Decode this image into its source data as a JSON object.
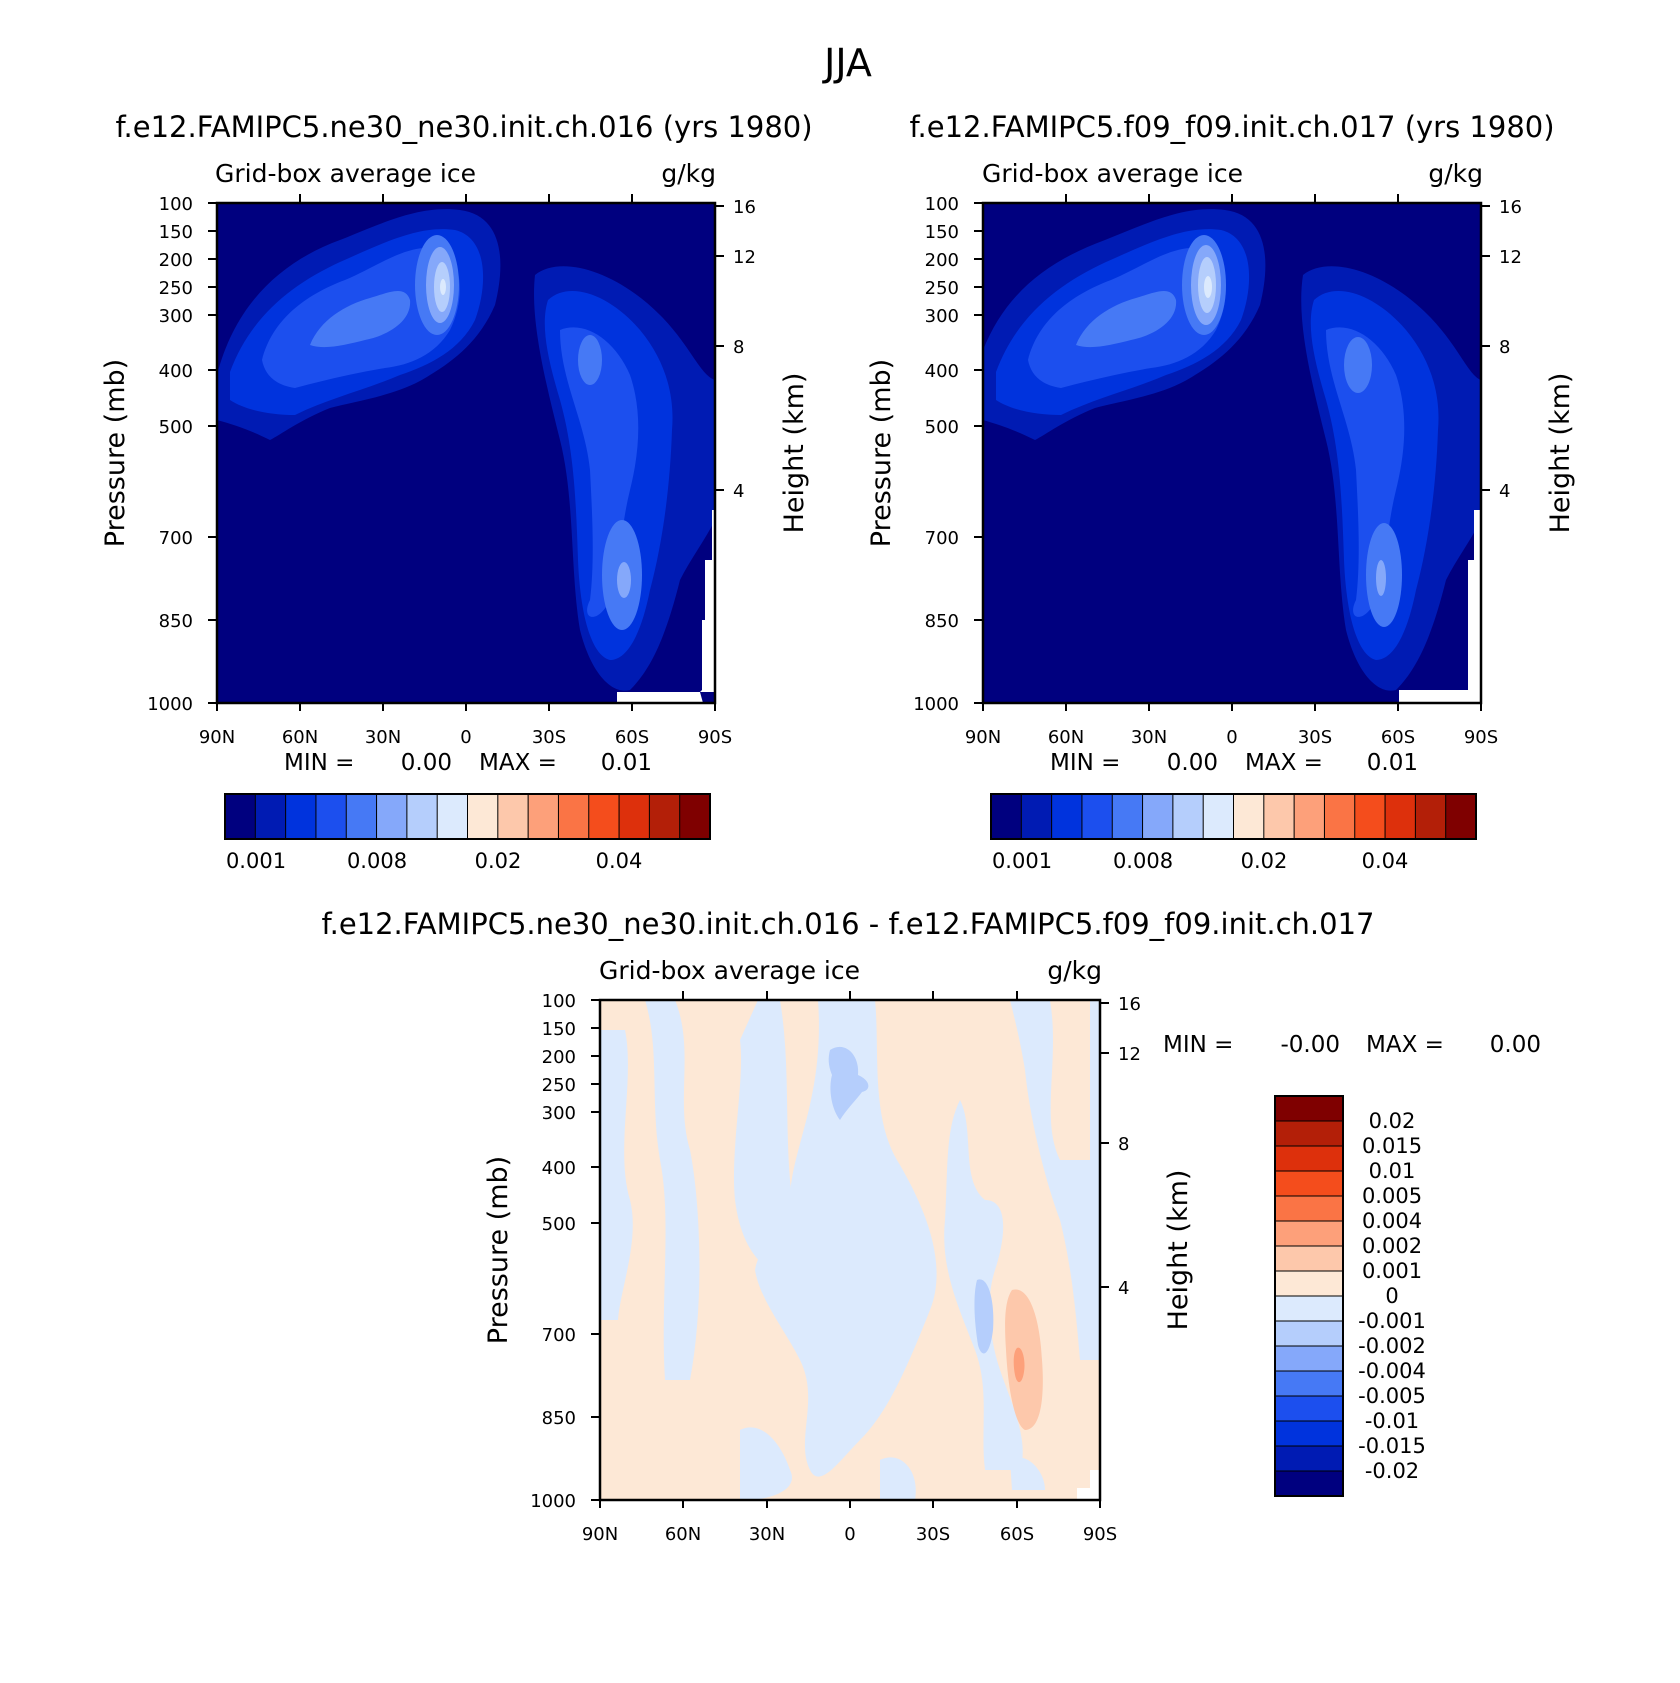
{
  "figure": {
    "title": "JJA"
  },
  "chart_data": [
    {
      "type": "heatmap",
      "title": "f.e12.FAMIPC5.ne30_ne30.init.ch.016 (yrs 1980)",
      "subtitle_left": "Grid-box average ice",
      "units": "g/kg",
      "ylabel": "Pressure (mb)",
      "ylabel2": "Height (km)",
      "x_ticks": [
        "90N",
        "60N",
        "30N",
        "0",
        "30S",
        "60S",
        "90S"
      ],
      "y_ticks": [
        "100",
        "150",
        "200",
        "250",
        "300",
        "400",
        "500",
        "700",
        "850",
        "1000"
      ],
      "y2_ticks": [
        "16",
        "12",
        "8",
        "4"
      ],
      "min_label": "MIN =",
      "min_value": "0.00",
      "max_label": "MAX =",
      "max_value": "0.01",
      "colorbar": {
        "orientation": "horizontal",
        "labels": [
          "0.001",
          "0.008",
          "0.02",
          "0.04"
        ],
        "colors": [
          "#00007f",
          "#001bb3",
          "#0033dd",
          "#1c4fee",
          "#4679f5",
          "#85a8fa",
          "#b5cefc",
          "#dceafd",
          "#fde8d6",
          "#fdc8ab",
          "#fda07a",
          "#fa7445",
          "#f44d1c",
          "#dd300c",
          "#b31f08",
          "#7f0000"
        ]
      }
    },
    {
      "type": "heatmap",
      "title": "f.e12.FAMIPC5.f09_f09.init.ch.017 (yrs 1980)",
      "subtitle_left": "Grid-box average ice",
      "units": "g/kg",
      "ylabel": "Pressure (mb)",
      "ylabel2": "Height (km)",
      "x_ticks": [
        "90N",
        "60N",
        "30N",
        "0",
        "30S",
        "60S",
        "90S"
      ],
      "y_ticks": [
        "100",
        "150",
        "200",
        "250",
        "300",
        "400",
        "500",
        "700",
        "850",
        "1000"
      ],
      "y2_ticks": [
        "16",
        "12",
        "8",
        "4"
      ],
      "min_label": "MIN =",
      "min_value": "0.00",
      "max_label": "MAX =",
      "max_value": "0.01",
      "colorbar": {
        "orientation": "horizontal",
        "labels": [
          "0.001",
          "0.008",
          "0.02",
          "0.04"
        ],
        "colors": [
          "#00007f",
          "#001bb3",
          "#0033dd",
          "#1c4fee",
          "#4679f5",
          "#85a8fa",
          "#b5cefc",
          "#dceafd",
          "#fde8d6",
          "#fdc8ab",
          "#fda07a",
          "#fa7445",
          "#f44d1c",
          "#dd300c",
          "#b31f08",
          "#7f0000"
        ]
      }
    },
    {
      "type": "heatmap",
      "title": "f.e12.FAMIPC5.ne30_ne30.init.ch.016 - f.e12.FAMIPC5.f09_f09.init.ch.017",
      "subtitle_left": "Grid-box average ice",
      "units": "g/kg",
      "ylabel": "Pressure (mb)",
      "ylabel2": "Height (km)",
      "x_ticks": [
        "90N",
        "60N",
        "30N",
        "0",
        "30S",
        "60S",
        "90S"
      ],
      "y_ticks": [
        "100",
        "150",
        "200",
        "250",
        "300",
        "400",
        "500",
        "700",
        "850",
        "1000"
      ],
      "y2_ticks": [
        "16",
        "12",
        "8",
        "4"
      ],
      "min_label": "MIN =",
      "min_value": "-0.00",
      "max_label": "MAX =",
      "max_value": "0.00",
      "colorbar": {
        "orientation": "vertical",
        "labels": [
          "0.02",
          "0.015",
          "0.01",
          "0.005",
          "0.004",
          "0.002",
          "0.001",
          "0",
          "-0.001",
          "-0.002",
          "-0.004",
          "-0.005",
          "-0.01",
          "-0.015",
          "-0.02"
        ],
        "colors": [
          "#7f0000",
          "#b31f08",
          "#dd300c",
          "#f44d1c",
          "#fa7445",
          "#fda07a",
          "#fdc8ab",
          "#fde8d6",
          "#dceafd",
          "#b5cefc",
          "#85a8fa",
          "#4679f5",
          "#1c4fee",
          "#0033dd",
          "#001bb3",
          "#00007f"
        ]
      }
    }
  ]
}
